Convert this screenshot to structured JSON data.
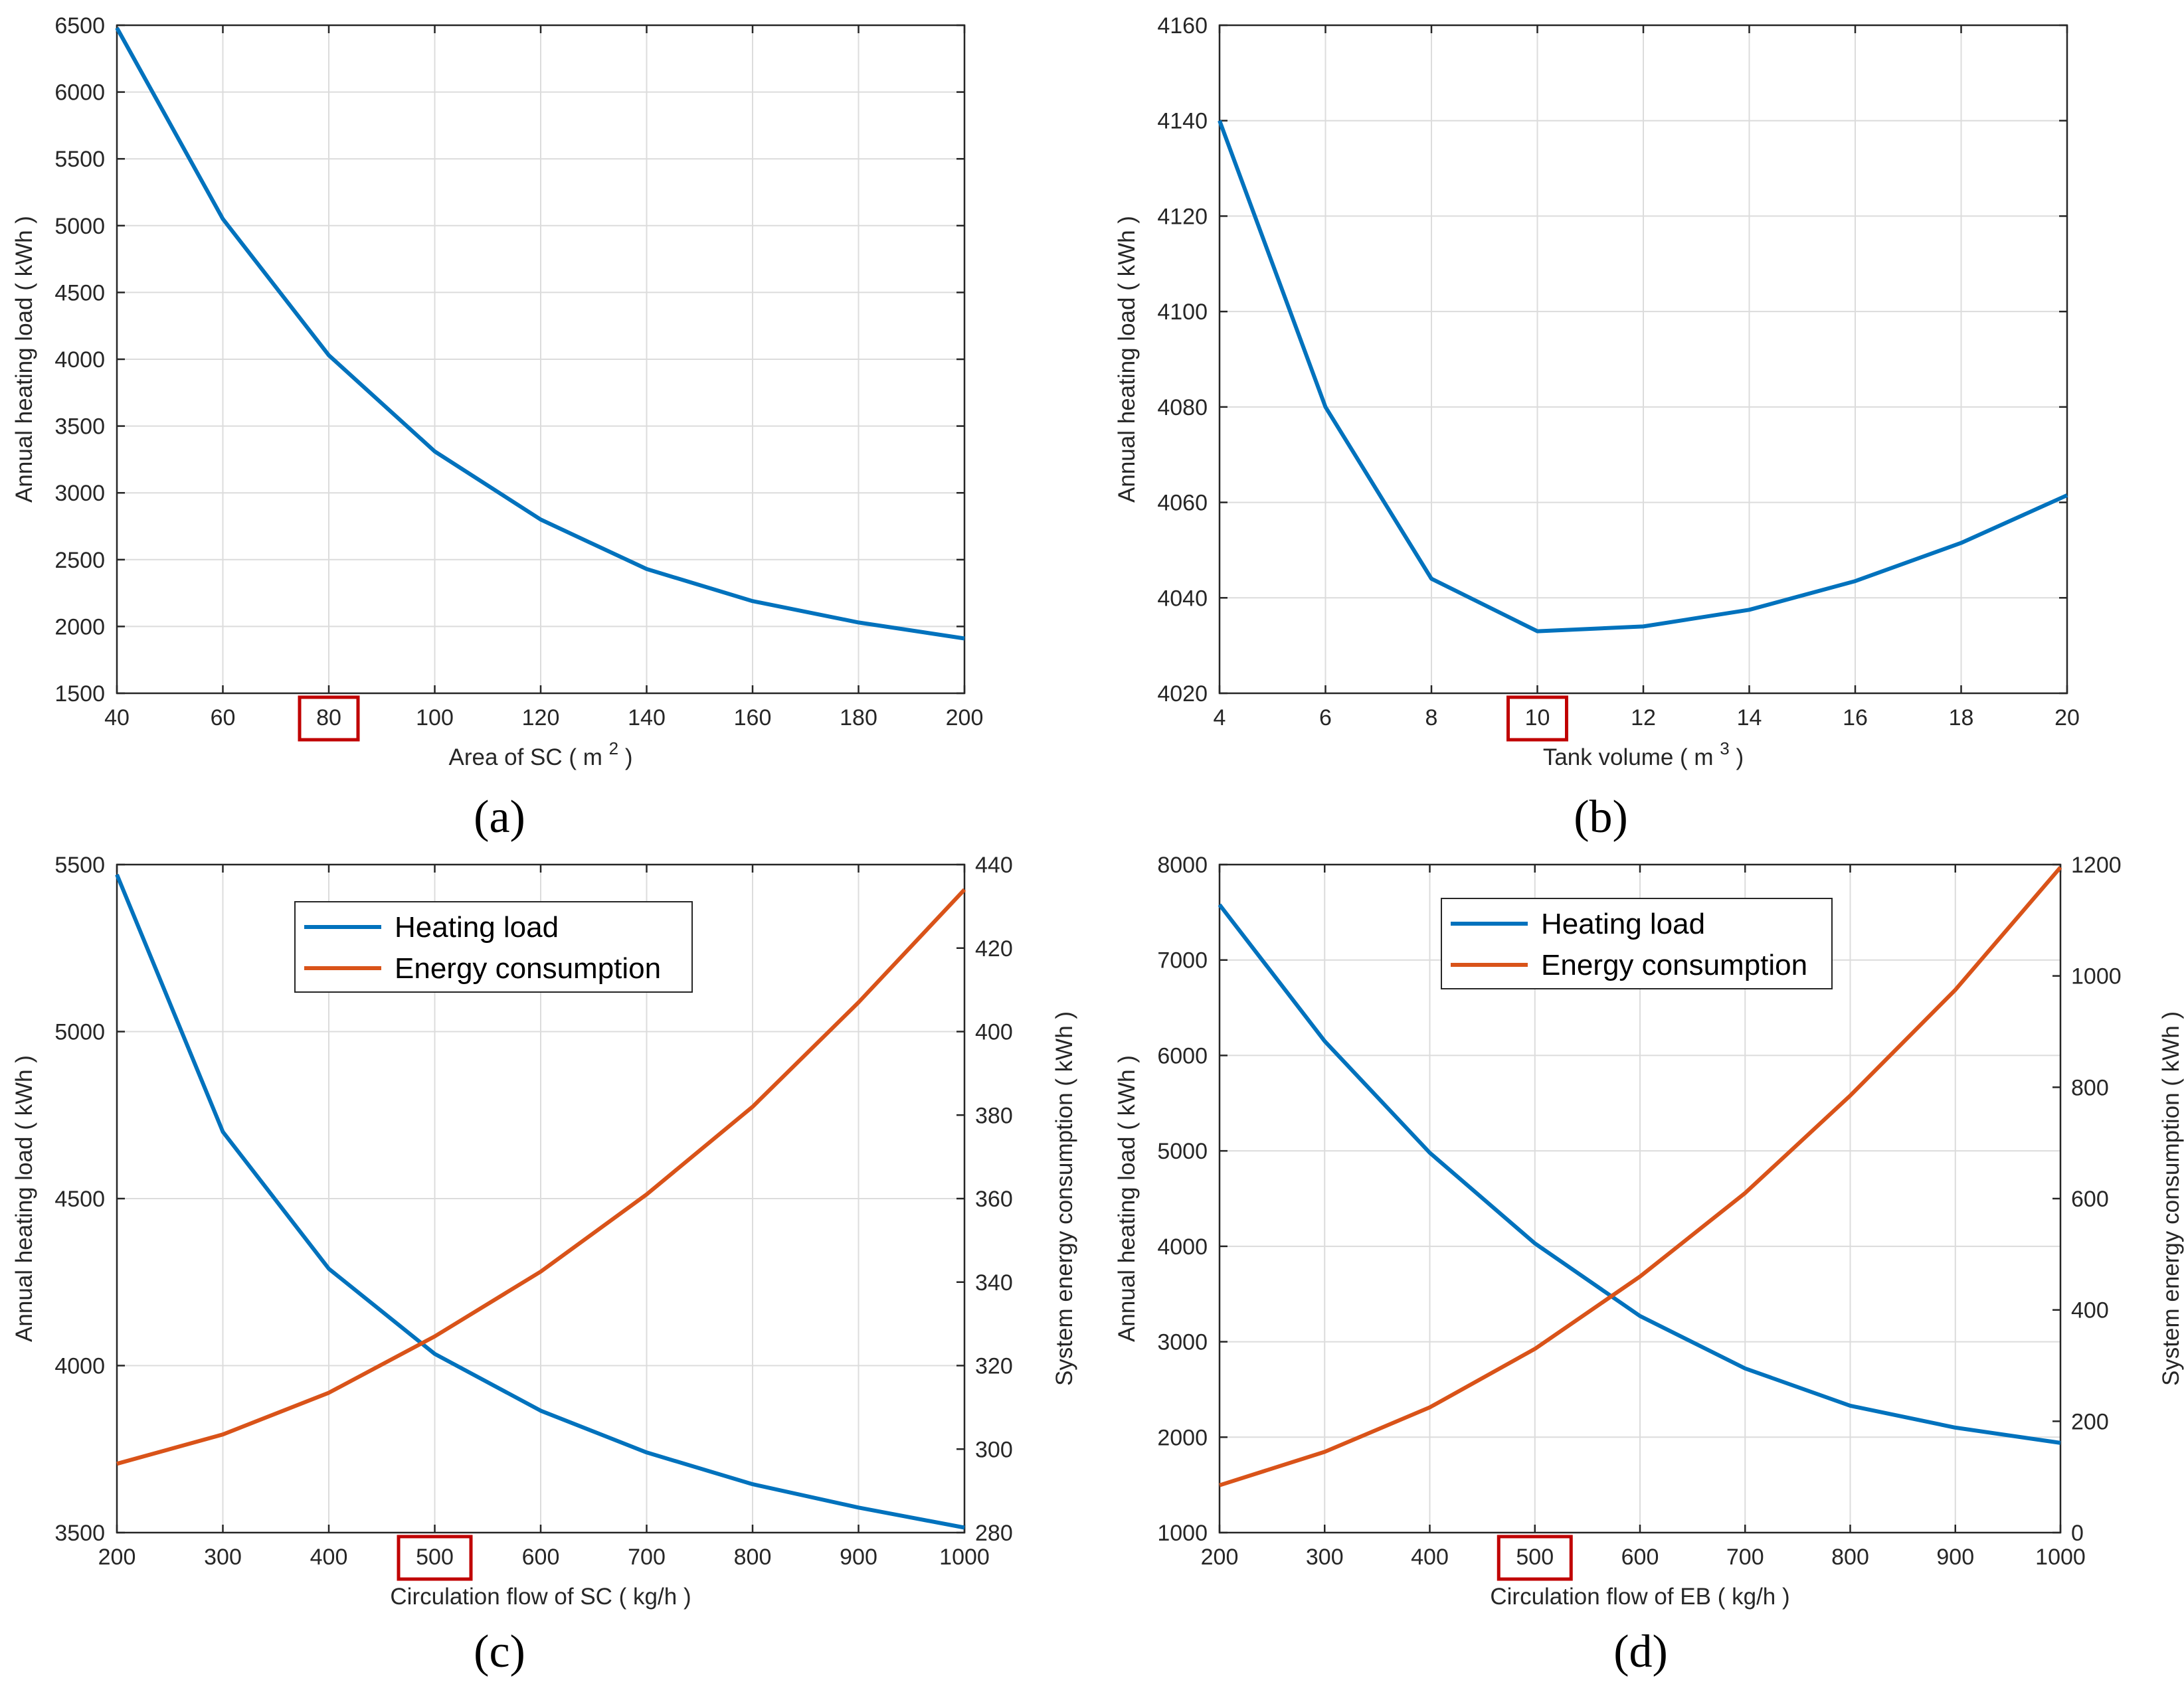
{
  "colors": {
    "heating": "#0072bd",
    "energy": "#d95319",
    "highlight": "#c00000"
  },
  "chart_data": [
    {
      "id": "a",
      "type": "line",
      "panel_label": "(a)",
      "xlabel": "Area of SC ( m ",
      "xlabel_sup": "2",
      "xlabel_tail": " )",
      "ylabel": "Annual heating load ( kWh )",
      "xlim": [
        40,
        200
      ],
      "ylim": [
        1500,
        6500
      ],
      "xticks": [
        40,
        60,
        80,
        100,
        120,
        140,
        160,
        180,
        200
      ],
      "yticks": [
        1500,
        2000,
        2500,
        3000,
        3500,
        4000,
        4500,
        5000,
        5500,
        6000,
        6500
      ],
      "highlight_tick": "80",
      "series": [
        {
          "name": "Annual heating load",
          "axis": "left",
          "color_key": "heating",
          "x": [
            40,
            60,
            80,
            100,
            120,
            140,
            160,
            180,
            200
          ],
          "values": [
            6480,
            5050,
            4030,
            3310,
            2800,
            2430,
            2190,
            2030,
            1910
          ]
        }
      ]
    },
    {
      "id": "b",
      "type": "line",
      "panel_label": "(b)",
      "xlabel": "Tank volume ( m ",
      "xlabel_sup": "3",
      "xlabel_tail": " )",
      "ylabel": "Annual heating load ( kWh )",
      "xlim": [
        4,
        20
      ],
      "ylim": [
        4020,
        4160
      ],
      "xticks": [
        4,
        6,
        8,
        10,
        12,
        14,
        16,
        18,
        20
      ],
      "yticks": [
        4020,
        4040,
        4060,
        4080,
        4100,
        4120,
        4140,
        4160
      ],
      "highlight_tick": "10",
      "series": [
        {
          "name": "Annual heating load",
          "axis": "left",
          "color_key": "heating",
          "x": [
            4,
            6,
            8,
            10,
            12,
            14,
            16,
            18,
            20
          ],
          "values": [
            4140,
            4080,
            4044,
            4033,
            4034,
            4037.5,
            4043.5,
            4051.5,
            4061.5
          ]
        }
      ]
    },
    {
      "id": "c",
      "type": "line",
      "panel_label": "(c)",
      "xlabel": "Circulation flow of SC ( kg/h )",
      "xlabel_sup": "",
      "xlabel_tail": "",
      "ylabel": "Annual heating load ( kWh )",
      "ylabel_right": "System energy consumption ( kWh )",
      "xlim": [
        200,
        1000
      ],
      "ylim": [
        3500,
        5500
      ],
      "ylim_right": [
        280,
        440
      ],
      "xticks": [
        200,
        300,
        400,
        500,
        600,
        700,
        800,
        900,
        1000
      ],
      "yticks": [
        3500,
        4000,
        4500,
        5000,
        5500
      ],
      "yticks_right": [
        280,
        300,
        320,
        340,
        360,
        380,
        400,
        420,
        440
      ],
      "highlight_tick": "500",
      "legend": [
        "Heating load",
        "Energy consumption"
      ],
      "series": [
        {
          "name": "Heating load",
          "axis": "left",
          "color_key": "heating",
          "x": [
            200,
            300,
            400,
            500,
            600,
            700,
            800,
            900,
            1000
          ],
          "values": [
            5470,
            4700,
            4290,
            4035,
            3865,
            3740,
            3645,
            3575,
            3515
          ]
        },
        {
          "name": "Energy consumption",
          "axis": "right",
          "color_key": "energy",
          "x": [
            200,
            300,
            400,
            500,
            600,
            700,
            800,
            900,
            1000
          ],
          "values": [
            296.5,
            303.5,
            313.5,
            327,
            342.5,
            361,
            382,
            407,
            434
          ]
        }
      ]
    },
    {
      "id": "d",
      "type": "line",
      "panel_label": "(d)",
      "xlabel": "Circulation flow of EB ( kg/h )",
      "xlabel_sup": "",
      "xlabel_tail": "",
      "ylabel": "Annual heating load ( kWh )",
      "ylabel_right": "System energy consumption ( kWh )",
      "xlim": [
        200,
        1000
      ],
      "ylim": [
        1000,
        8000
      ],
      "ylim_right": [
        0,
        1200
      ],
      "xticks": [
        200,
        300,
        400,
        500,
        600,
        700,
        800,
        900,
        1000
      ],
      "yticks": [
        1000,
        2000,
        3000,
        4000,
        5000,
        6000,
        7000,
        8000
      ],
      "yticks_right": [
        0,
        200,
        400,
        600,
        800,
        1000,
        1200
      ],
      "highlight_tick": "500",
      "legend": [
        "Heating load",
        "Energy consumption"
      ],
      "series": [
        {
          "name": "Heating load",
          "axis": "left",
          "color_key": "heating",
          "x": [
            200,
            300,
            400,
            500,
            600,
            700,
            800,
            900,
            1000
          ],
          "values": [
            7580,
            6150,
            4980,
            4030,
            3270,
            2720,
            2330,
            2100,
            1940
          ]
        },
        {
          "name": "Energy consumption",
          "axis": "right",
          "color_key": "energy",
          "x": [
            200,
            300,
            400,
            500,
            600,
            700,
            800,
            900,
            1000
          ],
          "values": [
            85,
            145,
            225,
            330,
            460,
            610,
            785,
            975,
            1195
          ]
        }
      ]
    }
  ]
}
